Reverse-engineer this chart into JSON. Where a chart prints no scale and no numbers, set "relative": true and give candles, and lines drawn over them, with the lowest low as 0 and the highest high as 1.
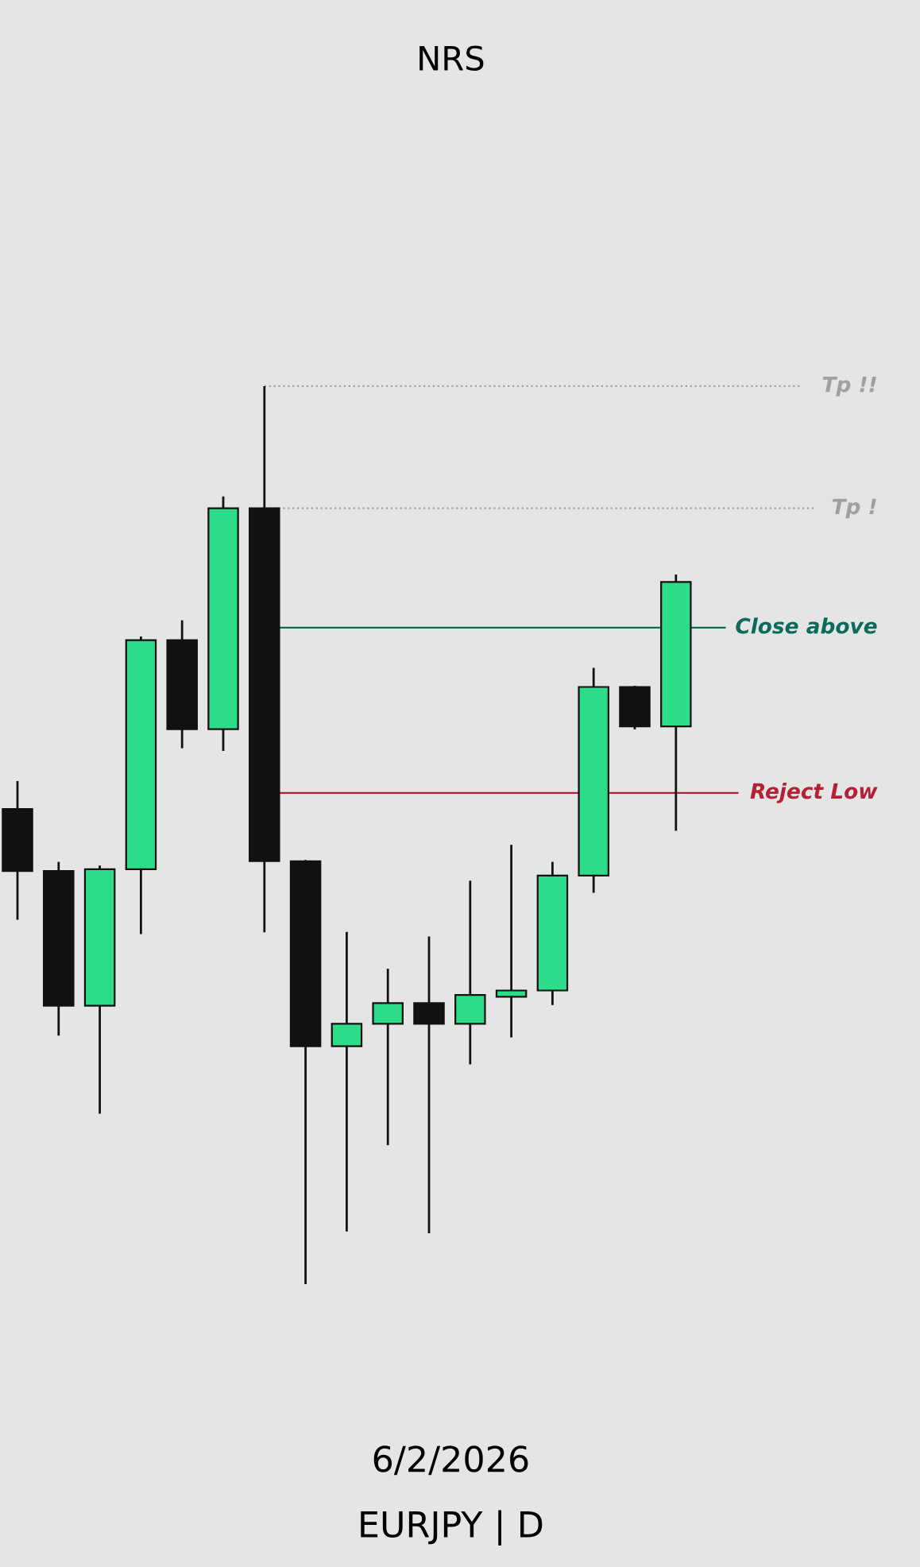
{
  "chart_data": {
    "type": "candlestick",
    "title": "NRS",
    "relative": true,
    "categories": [
      null,
      null,
      null,
      null,
      null,
      null,
      null,
      null,
      null,
      null,
      null,
      null,
      null,
      null,
      null,
      null,
      null
    ],
    "ohlc": [
      [
        0.529,
        0.559,
        0.407,
        0.46
      ],
      [
        0.46,
        0.469,
        0.278,
        0.31
      ],
      [
        0.31,
        0.465,
        0.191,
        0.462
      ],
      [
        0.462,
        0.72,
        0.391,
        0.717
      ],
      [
        0.717,
        0.738,
        0.598,
        0.618
      ],
      [
        0.618,
        0.876,
        0.595,
        0.864
      ],
      [
        0.864,
        1.0,
        0.393,
        0.471
      ],
      [
        0.471,
        0.471,
        0.0,
        0.265
      ],
      [
        0.265,
        0.391,
        0.06,
        0.29
      ],
      [
        0.29,
        0.35,
        0.156,
        0.313
      ],
      [
        0.313,
        0.386,
        0.058,
        0.29
      ],
      [
        0.29,
        0.448,
        0.246,
        0.322
      ],
      [
        0.32,
        0.488,
        0.276,
        0.327
      ],
      [
        0.327,
        0.469,
        0.312,
        0.455
      ],
      [
        0.455,
        0.685,
        0.437,
        0.665
      ],
      [
        0.665,
        0.665,
        0.619,
        0.621
      ],
      [
        0.621,
        0.789,
        0.506,
        0.782
      ]
    ],
    "colors": [
      "#111111",
      "#111111",
      "#2ddc88",
      "#2ddc88",
      "#111111",
      "#2ddc88",
      "#111111",
      "#111111",
      "#2ddc88",
      "#2ddc88",
      "#111111",
      "#2ddc88",
      "#2ddc88",
      "#2ddc88",
      "#2ddc88",
      "#111111",
      "#2ddc88"
    ],
    "ref_lines": [
      {
        "axis": "y",
        "value": 1.0,
        "label": "Tp !!",
        "color": "#a0a0a0",
        "line_style": "dotted"
      },
      {
        "axis": "y",
        "value": 0.864,
        "label": "Tp !",
        "color": "#a0a0a0",
        "line_style": "dotted"
      },
      {
        "axis": "y",
        "value": 0.731,
        "label": "Close above",
        "color": "#0b6b5a",
        "line_style": "solid"
      },
      {
        "axis": "y",
        "value": 0.547,
        "label": "Reject Low",
        "color": "#b22234",
        "line_style": "solid"
      }
    ],
    "annotations": [
      "6/2/2026",
      "EURJPY | D"
    ]
  }
}
